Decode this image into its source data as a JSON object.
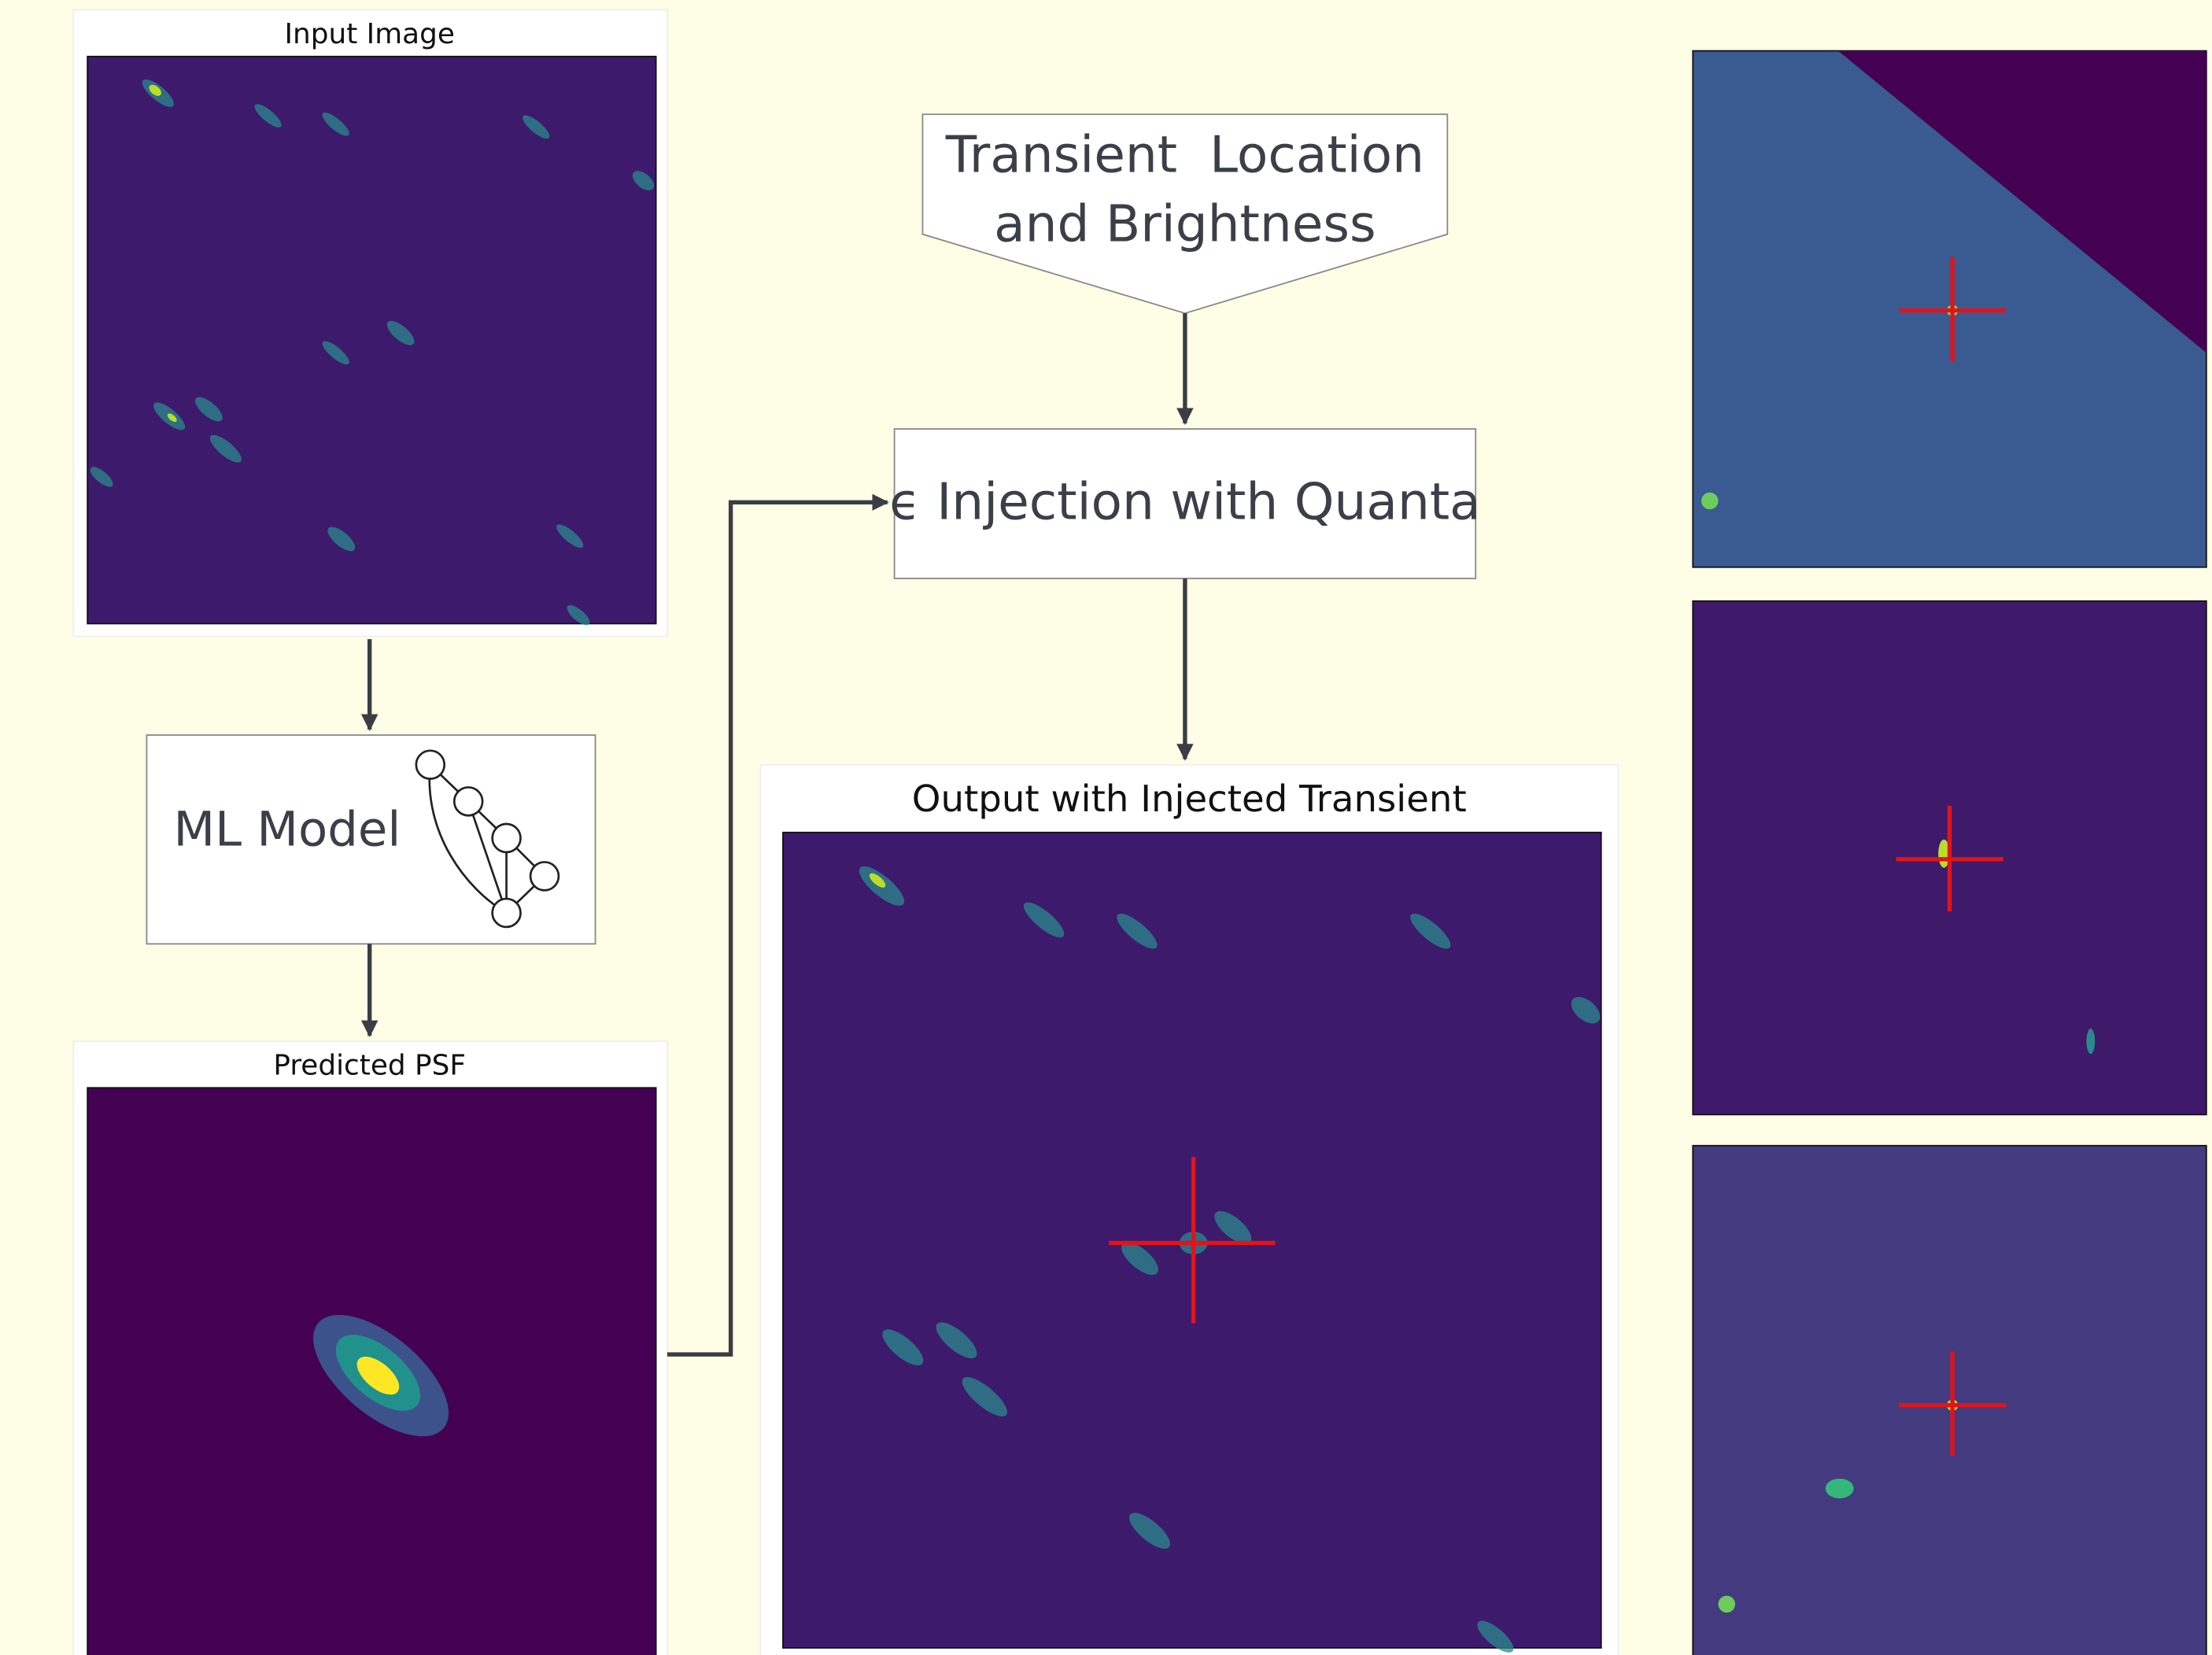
{
  "input_panel": {
    "title": "Input Image"
  },
  "model_box": {
    "label": "ML Model"
  },
  "psf_panel": {
    "title": "Predicted PSF"
  },
  "transient_box": {
    "lines": [
      "Transient  Location",
      "and Brightness"
    ]
  },
  "injection_box": {
    "label": "ϵ Injection with Quanta"
  },
  "output_panel": {
    "title": "Output with Injected Transient"
  }
}
